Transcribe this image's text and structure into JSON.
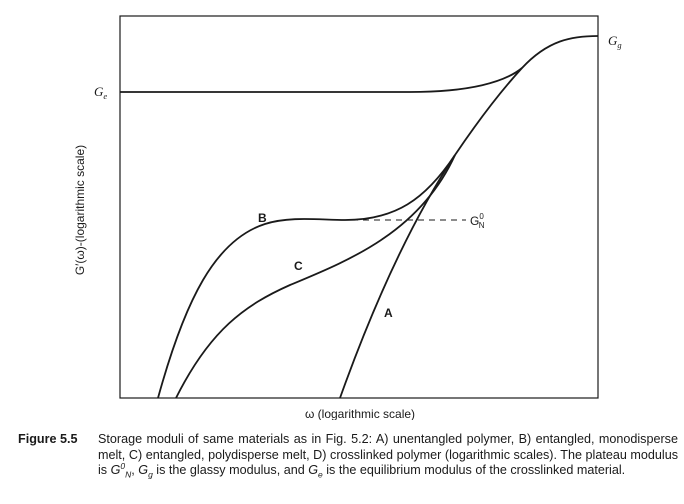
{
  "figure": {
    "y_axis_label": "G′(ω)-(logarithmic scale)",
    "x_axis_label": "ω (logarithmic scale)",
    "label_ge": "G",
    "label_ge_sub": "e",
    "label_gg": "G",
    "label_gg_sub": "g",
    "label_gn": "G",
    "label_gn_sub": "N",
    "label_gn_sup": "0",
    "curve_labels": {
      "A": "A",
      "B": "B",
      "C": "C"
    }
  },
  "caption": {
    "label": "Figure 5.5",
    "text_1": "Storage moduli of same materials as in Fig. 5.2: A) unentangled polymer, B) entangled, monodisperse melt, C) entangled, polydisperse melt, D) crosslinked polymer (logarithmic scales). The plateau modulus is ",
    "gn": "G",
    "gn_sub": "N",
    "gn_sup": "0",
    "text_2": ", ",
    "gg": "G",
    "gg_sub": "g",
    "text_3": " is the glassy modulus, and ",
    "ge": "G",
    "ge_sub": "e",
    "text_4": " is the equilibrium modulus of the crosslinked material."
  }
}
